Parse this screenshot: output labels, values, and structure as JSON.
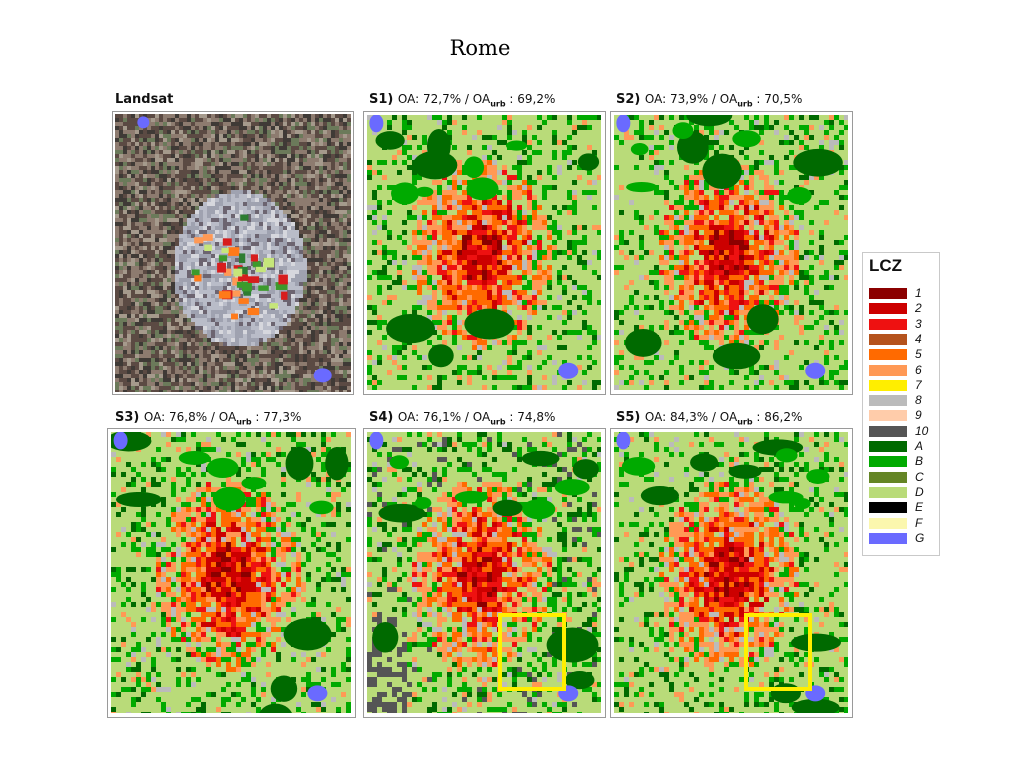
{
  "page": {
    "title": "Rome"
  },
  "panels": [
    {
      "id": "landsat",
      "prefix": "Landsat",
      "oa": "",
      "oa_urb_prefix": "",
      "oa_urb": "",
      "type": "satellite"
    },
    {
      "id": "s1",
      "prefix": "S1)",
      "oa": "OA: 72,7% / OA",
      "oa_urb_prefix": "urb",
      "oa_urb": " : 69,2%",
      "type": "lcz"
    },
    {
      "id": "s2",
      "prefix": "S2)",
      "oa": "OA: 73,9% / OA",
      "oa_urb_prefix": "urb",
      "oa_urb": " : 70,5%",
      "type": "lcz"
    },
    {
      "id": "s3",
      "prefix": "S3)",
      "oa": "OA: 76,8% / OA",
      "oa_urb_prefix": "urb",
      "oa_urb": " : 77,3%",
      "type": "lcz"
    },
    {
      "id": "s4",
      "prefix": "S4)",
      "oa": "OA: 76,1% / OA",
      "oa_urb_prefix": "urb",
      "oa_urb": " : 74,8%",
      "type": "lcz",
      "highlight": true
    },
    {
      "id": "s5",
      "prefix": "S5)",
      "oa": "OA: 84,3% / OA",
      "oa_urb_prefix": "urb",
      "oa_urb": " : 86,2%",
      "type": "lcz",
      "highlight": true
    }
  ],
  "legend": {
    "title": "LCZ",
    "items": [
      {
        "label": "1",
        "color": "#8b0000"
      },
      {
        "label": "2",
        "color": "#cc0000"
      },
      {
        "label": "3",
        "color": "#ee1111"
      },
      {
        "label": "4",
        "color": "#b5531d"
      },
      {
        "label": "5",
        "color": "#ff6a00"
      },
      {
        "label": "6",
        "color": "#ff9955"
      },
      {
        "label": "7",
        "color": "#ffee00"
      },
      {
        "label": "8",
        "color": "#bbbbbb"
      },
      {
        "label": "9",
        "color": "#ffccaa"
      },
      {
        "label": "10",
        "color": "#555555"
      },
      {
        "label": "A",
        "color": "#006a00"
      },
      {
        "label": "B",
        "color": "#00aa00"
      },
      {
        "label": "C",
        "color": "#648525"
      },
      {
        "label": "D",
        "color": "#b9db79"
      },
      {
        "label": "E",
        "color": "#000000"
      },
      {
        "label": "F",
        "color": "#fbf7ae"
      },
      {
        "label": "G",
        "color": "#6a6aff"
      }
    ]
  }
}
